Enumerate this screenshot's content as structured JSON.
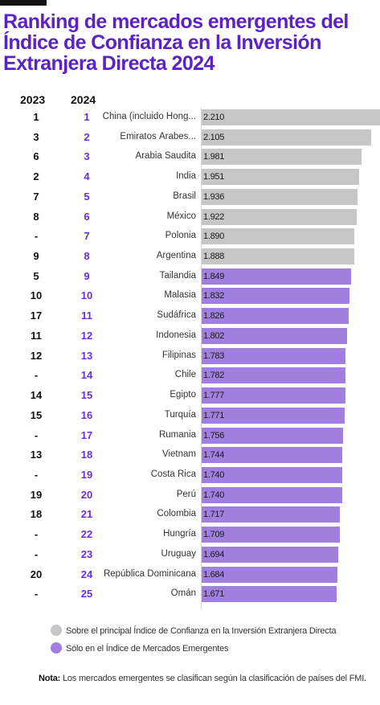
{
  "title": [
    "Ranking de mercados emergentes del",
    "Índice de Confianza en la Inversión",
    "Extranjera Directa 2024"
  ],
  "headers": {
    "y2023": "2023",
    "y2024": "2024"
  },
  "colors": {
    "title": "#5b22c4",
    "rank2024": "#6a2ee0",
    "both": "#c6c6c6",
    "emerging_only": "#a07fe0"
  },
  "legend": [
    {
      "label": "Sobre el principal Índice de Confianza en la Inversión Extranjera Directa",
      "color": "#c6c6c6"
    },
    {
      "label": "Sólo en el Índice de Mercados Emergentes",
      "color": "#a07fe0"
    }
  ],
  "note": {
    "label": "Nota:",
    "text": " Los mercados emergentes se clasifican según la clasificación de países del FMI."
  },
  "chart_data": {
    "type": "bar",
    "orientation": "horizontal",
    "xlim": [
      0,
      2.21
    ],
    "rows": [
      {
        "rank2023": "1",
        "rank2024": "1",
        "country": "China (incluido Hong...",
        "value": "2.210",
        "group": "both"
      },
      {
        "rank2023": "3",
        "rank2024": "2",
        "country": "Emiratos Árabes...",
        "value": "2.105",
        "group": "both"
      },
      {
        "rank2023": "6",
        "rank2024": "3",
        "country": "Arabia Saudita",
        "value": "1.981",
        "group": "both"
      },
      {
        "rank2023": "2",
        "rank2024": "4",
        "country": "India",
        "value": "1.951",
        "group": "both"
      },
      {
        "rank2023": "7",
        "rank2024": "5",
        "country": "Brasil",
        "value": "1.936",
        "group": "both"
      },
      {
        "rank2023": "8",
        "rank2024": "6",
        "country": "México",
        "value": "1.922",
        "group": "both"
      },
      {
        "rank2023": "-",
        "rank2024": "7",
        "country": "Polonia",
        "value": "1.890",
        "group": "both"
      },
      {
        "rank2023": "9",
        "rank2024": "8",
        "country": "Argentina",
        "value": "1.888",
        "group": "both"
      },
      {
        "rank2023": "5",
        "rank2024": "9",
        "country": "Tailandia",
        "value": "1.849",
        "group": "emerging_only"
      },
      {
        "rank2023": "10",
        "rank2024": "10",
        "country": "Malasia",
        "value": "1.832",
        "group": "emerging_only"
      },
      {
        "rank2023": "17",
        "rank2024": "11",
        "country": "Sudáfrica",
        "value": "1.826",
        "group": "emerging_only"
      },
      {
        "rank2023": "11",
        "rank2024": "12",
        "country": "Indonesia",
        "value": "1.802",
        "group": "emerging_only"
      },
      {
        "rank2023": "12",
        "rank2024": "13",
        "country": "Filipinas",
        "value": "1.783",
        "group": "emerging_only"
      },
      {
        "rank2023": "-",
        "rank2024": "14",
        "country": "Chile",
        "value": "1.782",
        "group": "emerging_only"
      },
      {
        "rank2023": "14",
        "rank2024": "15",
        "country": "Egipto",
        "value": "1.777",
        "group": "emerging_only"
      },
      {
        "rank2023": "15",
        "rank2024": "16",
        "country": "Turquía",
        "value": "1.771",
        "group": "emerging_only"
      },
      {
        "rank2023": "-",
        "rank2024": "17",
        "country": "Rumania",
        "value": "1.756",
        "group": "emerging_only"
      },
      {
        "rank2023": "13",
        "rank2024": "18",
        "country": "Vietnam",
        "value": "1.744",
        "group": "emerging_only"
      },
      {
        "rank2023": "-",
        "rank2024": "19",
        "country": "Costa Rica",
        "value": "1.740",
        "group": "emerging_only"
      },
      {
        "rank2023": "19",
        "rank2024": "20",
        "country": "Perú",
        "value": "1.740",
        "group": "emerging_only"
      },
      {
        "rank2023": "18",
        "rank2024": "21",
        "country": "Colombia",
        "value": "1.717",
        "group": "emerging_only"
      },
      {
        "rank2023": "-",
        "rank2024": "22",
        "country": "Hungría",
        "value": "1.709",
        "group": "emerging_only"
      },
      {
        "rank2023": "-",
        "rank2024": "23",
        "country": "Uruguay",
        "value": "1.694",
        "group": "emerging_only"
      },
      {
        "rank2023": "20",
        "rank2024": "24",
        "country": "República Dominicana",
        "value": "1.684",
        "group": "emerging_only"
      },
      {
        "rank2023": "-",
        "rank2024": "25",
        "country": "Omán",
        "value": "1.671",
        "group": "emerging_only"
      }
    ]
  }
}
